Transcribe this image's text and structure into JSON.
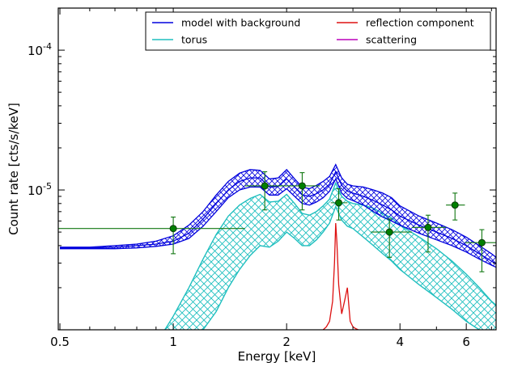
{
  "chart_data": {
    "type": "line",
    "xlabel": "Energy [keV]",
    "ylabel": "Count rate [cts/s/keV]",
    "xscale": "log",
    "yscale": "log",
    "xlim": [
      0.495,
      7.2
    ],
    "ylim": [
      1e-06,
      0.0002
    ],
    "grid": false,
    "legend_position": "top-right",
    "x_tick_labels": [
      {
        "value": 0.5,
        "label": "0.5"
      },
      {
        "value": 1,
        "label": "1"
      },
      {
        "value": 2,
        "label": "2"
      },
      {
        "value": 4,
        "label": "4"
      },
      {
        "value": 6,
        "label": "6"
      }
    ],
    "y_tick_labels": [
      {
        "value": 1e-05,
        "base": "10",
        "exp": "-5"
      },
      {
        "value": 0.0001,
        "base": "10",
        "exp": "-4"
      }
    ],
    "legend": [
      {
        "name": "model with background",
        "color": "#0000dd"
      },
      {
        "name": "torus",
        "color": "#1fbfbf"
      },
      {
        "name": "reflection component",
        "color": "#dd1111"
      },
      {
        "name": "scattering",
        "color": "#bb00bb"
      }
    ],
    "series": [
      {
        "name": "model with background",
        "color": "#0000dd",
        "x": [
          0.5,
          0.6,
          0.7,
          0.8,
          0.9,
          1.0,
          1.1,
          1.2,
          1.3,
          1.4,
          1.5,
          1.6,
          1.7,
          1.8,
          1.9,
          2.0,
          2.1,
          2.2,
          2.3,
          2.4,
          2.5,
          2.6,
          2.7,
          2.8,
          2.9,
          3.0,
          3.2,
          3.4,
          3.6,
          3.8,
          4.0,
          4.5,
          5.0,
          5.5,
          6.0,
          6.5,
          7.0,
          7.2
        ],
        "upper": [
          3.9e-06,
          3.9e-06,
          4e-06,
          4.1e-06,
          4.3e-06,
          4.7e-06,
          5.6e-06,
          7e-06,
          9.2e-06,
          1.15e-05,
          1.32e-05,
          1.4e-05,
          1.38e-05,
          1.2e-05,
          1.22e-05,
          1.4e-05,
          1.2e-05,
          1.05e-05,
          1.02e-05,
          1.08e-05,
          1.15e-05,
          1.25e-05,
          1.52e-05,
          1.22e-05,
          1.1e-05,
          1.07e-05,
          1.05e-05,
          1e-05,
          9.5e-06,
          8.8e-06,
          7.7e-06,
          6.5e-06,
          5.8e-06,
          5.2e-06,
          4.6e-06,
          4e-06,
          3.5e-06,
          3.3e-06
        ],
        "center": [
          3.85e-06,
          3.85e-06,
          3.9e-06,
          4e-06,
          4.1e-06,
          4.3e-06,
          4.9e-06,
          6.2e-06,
          8e-06,
          1e-05,
          1.15e-05,
          1.22e-05,
          1.22e-05,
          1.05e-05,
          1.06e-05,
          1.2e-05,
          1.05e-05,
          9.2e-06,
          9e-06,
          9.4e-06,
          1e-05,
          1.1e-05,
          1.35e-05,
          1.08e-05,
          9.8e-06,
          9.5e-06,
          9e-06,
          8.4e-06,
          7.8e-06,
          7.2e-06,
          6.5e-06,
          5.6e-06,
          5e-06,
          4.5e-06,
          4e-06,
          3.5e-06,
          3.1e-06,
          2.95e-06
        ],
        "lower": [
          3.8e-06,
          3.8e-06,
          3.8e-06,
          3.85e-06,
          3.95e-06,
          4.1e-06,
          4.5e-06,
          5.5e-06,
          7e-06,
          8.8e-06,
          1e-05,
          1.05e-05,
          1.05e-05,
          9.2e-06,
          9.2e-06,
          1.02e-05,
          9e-06,
          8e-06,
          7.8e-06,
          8.2e-06,
          8.8e-06,
          9.8e-06,
          1.2e-05,
          9.5e-06,
          8.7e-06,
          8.4e-06,
          7.8e-06,
          7e-06,
          6.4e-06,
          6e-06,
          5.6e-06,
          4.9e-06,
          4.4e-06,
          4e-06,
          3.6e-06,
          3.2e-06,
          2.9e-06,
          2.8e-06
        ]
      },
      {
        "name": "torus",
        "color": "#1fbfbf",
        "x": [
          0.95,
          1.0,
          1.1,
          1.2,
          1.3,
          1.4,
          1.5,
          1.6,
          1.7,
          1.8,
          1.9,
          2.0,
          2.1,
          2.2,
          2.3,
          2.4,
          2.5,
          2.6,
          2.7,
          2.8,
          2.9,
          3.0,
          3.2,
          3.4,
          3.6,
          3.8,
          4.0,
          4.5,
          5.0,
          5.5,
          6.0,
          6.5,
          7.0,
          7.2
        ],
        "upper": [
          1e-06,
          1.25e-06,
          2e-06,
          3.2e-06,
          4.8e-06,
          6.5e-06,
          7.8e-06,
          8.7e-06,
          9.3e-06,
          8.2e-06,
          8.3e-06,
          9.3e-06,
          8e-06,
          6.8e-06,
          6.6e-06,
          7e-06,
          7.7e-06,
          8.6e-06,
          1.12e-05,
          9e-06,
          8.3e-06,
          8e-06,
          7.8e-06,
          7.4e-06,
          6.8e-06,
          6.3e-06,
          5.6e-06,
          4.6e-06,
          3.8e-06,
          3.1e-06,
          2.5e-06,
          2e-06,
          1.6e-06,
          1.5e-06
        ],
        "lower": [
          null,
          null,
          null,
          1e-06,
          1.35e-06,
          2e-06,
          2.7e-06,
          3.4e-06,
          4e-06,
          3.9e-06,
          4.3e-06,
          5e-06,
          4.5e-06,
          4e-06,
          4e-06,
          4.4e-06,
          5e-06,
          5.8e-06,
          7.6e-06,
          6.1e-06,
          5.5e-06,
          5.3e-06,
          4.6e-06,
          4e-06,
          3.5e-06,
          3.1e-06,
          2.7e-06,
          2.1e-06,
          1.7e-06,
          1.4e-06,
          1.15e-06,
          1e-06,
          null,
          null
        ]
      },
      {
        "name": "reflection component",
        "color": "#dd1111",
        "x": [
          2.5,
          2.55,
          2.6,
          2.65,
          2.68,
          2.7,
          2.72,
          2.75,
          2.8,
          2.85,
          2.9,
          2.92,
          2.95,
          3.0,
          3.05,
          3.1
        ],
        "values": [
          1e-06,
          1.05e-06,
          1.15e-06,
          1.6e-06,
          3e-06,
          5.8e-06,
          4.2e-06,
          2.1e-06,
          1.3e-06,
          1.6e-06,
          2e-06,
          1.6e-06,
          1.15e-06,
          1.05e-06,
          1.02e-06,
          1e-06
        ]
      }
    ],
    "data_points": {
      "name": "data",
      "color": "#117711",
      "marker_fill": "#008000",
      "points": [
        {
          "x": 1.0,
          "y": 5.3e-06,
          "xlo": 0.495,
          "xhi": 1.55,
          "ylo": 3.5e-06,
          "yhi": 6.4e-06
        },
        {
          "x": 1.75,
          "y": 1.07e-05,
          "xlo": 1.55,
          "xhi": 2.0,
          "ylo": 7.2e-06,
          "yhi": 1.35e-05
        },
        {
          "x": 2.2,
          "y": 1.07e-05,
          "xlo": 2.0,
          "xhi": 2.45,
          "ylo": 7.2e-06,
          "yhi": 1.33e-05
        },
        {
          "x": 2.75,
          "y": 8.1e-06,
          "xlo": 2.62,
          "xhi": 2.9,
          "ylo": 6.1e-06,
          "yhi": 1.02e-05
        },
        {
          "x": 3.75,
          "y": 5e-06,
          "xlo": 3.35,
          "xhi": 4.3,
          "ylo": 3.3e-06,
          "yhi": 6.2e-06
        },
        {
          "x": 4.75,
          "y": 5.4e-06,
          "xlo": 4.3,
          "xhi": 5.3,
          "ylo": 3.6e-06,
          "yhi": 6.6e-06
        },
        {
          "x": 5.6,
          "y": 7.8e-06,
          "xlo": 5.3,
          "xhi": 5.95,
          "ylo": 6.1e-06,
          "yhi": 9.5e-06
        },
        {
          "x": 6.6,
          "y": 4.2e-06,
          "xlo": 5.95,
          "xhi": 7.2,
          "ylo": 2.6e-06,
          "yhi": 5.2e-06
        }
      ]
    }
  }
}
